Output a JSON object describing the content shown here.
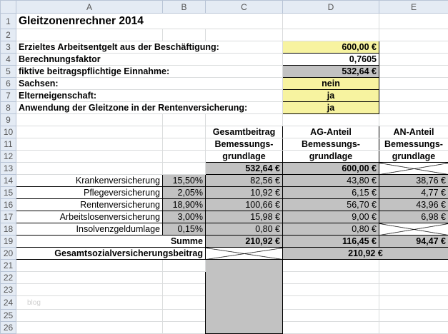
{
  "columns": [
    "A",
    "B",
    "C",
    "D",
    "E"
  ],
  "title": "Gleitzonenrechner 2014",
  "inputs": [
    {
      "label": "Erzieltes Arbeitsentgelt aus der Beschäftigung:",
      "value": "600,00 €"
    },
    {
      "label": "Berechnungsfaktor",
      "value": "0,7605"
    },
    {
      "label": "fiktive beitragspflichtige Einnahme:",
      "value": "532,64 €"
    },
    {
      "label": "Sachsen:",
      "value": "nein"
    },
    {
      "label": "Elterneigenschaft:",
      "value": "ja"
    },
    {
      "label": "Anwendung der Gleitzone in der Rentenversicherung:",
      "value": "ja"
    }
  ],
  "headers": {
    "c": [
      "Gesamtbeitrag",
      "Bemessungs-",
      "grundlage"
    ],
    "d": [
      "AG-Anteil",
      "Bemessungs-",
      "grundlage"
    ],
    "e": [
      "AN-Anteil",
      "Bemessungs-",
      "grundlage"
    ]
  },
  "basis": {
    "c": "532,64 €",
    "d": "600,00 €"
  },
  "rows": [
    {
      "label": "Krankenversicherung",
      "rate": "15,50%",
      "total": "82,56 €",
      "ag": "43,80 €",
      "an": "38,76 €"
    },
    {
      "label": "Pflegeversicherung",
      "rate": "2,05%",
      "total": "10,92 €",
      "ag": "6,15 €",
      "an": "4,77 €"
    },
    {
      "label": "Rentenversicherung",
      "rate": "18,90%",
      "total": "100,66 €",
      "ag": "56,70 €",
      "an": "43,96 €"
    },
    {
      "label": "Arbeitslosenversicherung",
      "rate": "3,00%",
      "total": "15,98 €",
      "ag": "9,00 €",
      "an": "6,98 €"
    },
    {
      "label": "Insolvenzgeldumlage",
      "rate": "0,15%",
      "total": "0,80 €",
      "ag": "0,80 €",
      "an": ""
    }
  ],
  "sum": {
    "label": "Summe",
    "total": "210,92 €",
    "ag": "116,45 €",
    "an": "94,47 €"
  },
  "grand": {
    "label": "Gesamtsozialversicherungsbeitrag",
    "value": "210,92 €"
  },
  "watermark": "blog",
  "row_numbers": [
    "1",
    "2",
    "3",
    "4",
    "5",
    "6",
    "7",
    "8",
    "9",
    "10",
    "11",
    "12",
    "13",
    "14",
    "15",
    "16",
    "17",
    "18",
    "19",
    "20",
    "21",
    "22",
    "23",
    "24",
    "25",
    "26"
  ]
}
